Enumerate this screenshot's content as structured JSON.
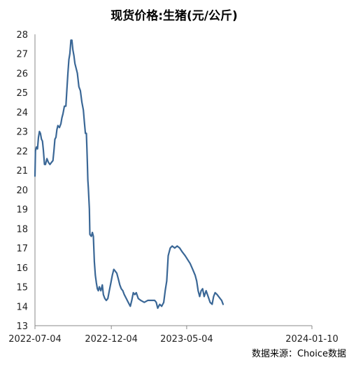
{
  "chart_data": {
    "type": "line",
    "title": "现货价格:生猪(元/公斤)",
    "xlabel": "",
    "ylabel": "",
    "ylim": [
      13,
      28
    ],
    "yticks": [
      13,
      14,
      15,
      16,
      17,
      18,
      19,
      20,
      21,
      22,
      23,
      24,
      25,
      26,
      27,
      28
    ],
    "xlim": [
      "2022-07-04",
      "2024-01-10"
    ],
    "xticks": [
      "2022-07-04",
      "2022-12-04",
      "2023-05-04",
      "2024-01-10"
    ],
    "grid": false,
    "line_color": "#3a6796",
    "series": [
      {
        "points": [
          [
            "2022-07-04",
            20.7
          ],
          [
            "2022-07-05",
            22.0
          ],
          [
            "2022-07-07",
            22.2
          ],
          [
            "2022-07-09",
            22.1
          ],
          [
            "2022-07-11",
            22.7
          ],
          [
            "2022-07-13",
            23.0
          ],
          [
            "2022-07-15",
            22.9
          ],
          [
            "2022-07-17",
            22.6
          ],
          [
            "2022-07-19",
            22.5
          ],
          [
            "2022-07-21",
            22.0
          ],
          [
            "2022-07-23",
            21.3
          ],
          [
            "2022-07-25",
            21.3
          ],
          [
            "2022-07-28",
            21.6
          ],
          [
            "2022-07-31",
            21.4
          ],
          [
            "2022-08-03",
            21.3
          ],
          [
            "2022-08-06",
            21.4
          ],
          [
            "2022-08-09",
            21.5
          ],
          [
            "2022-08-11",
            22.0
          ],
          [
            "2022-08-13",
            22.6
          ],
          [
            "2022-08-15",
            22.7
          ],
          [
            "2022-08-17",
            23.1
          ],
          [
            "2022-08-19",
            23.3
          ],
          [
            "2022-08-22",
            23.2
          ],
          [
            "2022-08-25",
            23.4
          ],
          [
            "2022-08-27",
            23.7
          ],
          [
            "2022-08-29",
            23.9
          ],
          [
            "2022-09-01",
            24.3
          ],
          [
            "2022-09-04",
            24.3
          ],
          [
            "2022-09-06",
            25.2
          ],
          [
            "2022-09-08",
            26.0
          ],
          [
            "2022-09-10",
            26.7
          ],
          [
            "2022-09-12",
            27.0
          ],
          [
            "2022-09-14",
            27.7
          ],
          [
            "2022-09-16",
            27.7
          ],
          [
            "2022-09-18",
            27.2
          ],
          [
            "2022-09-20",
            26.9
          ],
          [
            "2022-09-22",
            26.5
          ],
          [
            "2022-09-24",
            26.3
          ],
          [
            "2022-09-27",
            26.0
          ],
          [
            "2022-09-30",
            25.3
          ],
          [
            "2022-10-03",
            25.1
          ],
          [
            "2022-10-06",
            24.5
          ],
          [
            "2022-10-09",
            24.1
          ],
          [
            "2022-10-11",
            23.5
          ],
          [
            "2022-10-13",
            22.9
          ],
          [
            "2022-10-15",
            22.9
          ],
          [
            "2022-10-16",
            22.2
          ],
          [
            "2022-10-17",
            21.4
          ],
          [
            "2022-10-18",
            20.5
          ],
          [
            "2022-10-19",
            20.1
          ],
          [
            "2022-10-21",
            19.0
          ],
          [
            "2022-10-22",
            17.7
          ],
          [
            "2022-10-25",
            17.6
          ],
          [
            "2022-10-27",
            17.8
          ],
          [
            "2022-10-29",
            17.6
          ],
          [
            "2022-10-31",
            16.3
          ],
          [
            "2022-11-02",
            15.6
          ],
          [
            "2022-11-04",
            15.2
          ],
          [
            "2022-11-06",
            14.9
          ],
          [
            "2022-11-08",
            14.8
          ],
          [
            "2022-11-10",
            15.0
          ],
          [
            "2022-11-13",
            14.8
          ],
          [
            "2022-11-16",
            15.1
          ],
          [
            "2022-11-18",
            14.6
          ],
          [
            "2022-11-21",
            14.4
          ],
          [
            "2022-11-24",
            14.3
          ],
          [
            "2022-11-27",
            14.4
          ],
          [
            "2022-11-30",
            14.8
          ],
          [
            "2022-12-03",
            15.2
          ],
          [
            "2022-12-06",
            15.6
          ],
          [
            "2022-12-09",
            15.9
          ],
          [
            "2022-12-12",
            15.8
          ],
          [
            "2022-12-15",
            15.7
          ],
          [
            "2022-12-18",
            15.4
          ],
          [
            "2022-12-21",
            15.1
          ],
          [
            "2022-12-24",
            14.9
          ],
          [
            "2022-12-27",
            14.8
          ],
          [
            "2022-12-30",
            14.6
          ],
          [
            "2023-01-03",
            14.4
          ],
          [
            "2023-01-07",
            14.2
          ],
          [
            "2023-01-11",
            14.0
          ],
          [
            "2023-01-14",
            14.3
          ],
          [
            "2023-01-17",
            14.7
          ],
          [
            "2023-01-20",
            14.6
          ],
          [
            "2023-01-23",
            14.7
          ],
          [
            "2023-01-27",
            14.4
          ],
          [
            "2023-02-01",
            14.3
          ],
          [
            "2023-02-08",
            14.2
          ],
          [
            "2023-02-15",
            14.3
          ],
          [
            "2023-02-22",
            14.3
          ],
          [
            "2023-03-01",
            14.3
          ],
          [
            "2023-03-04",
            14.2
          ],
          [
            "2023-03-07",
            13.9
          ],
          [
            "2023-03-11",
            14.1
          ],
          [
            "2023-03-15",
            14.0
          ],
          [
            "2023-03-19",
            14.2
          ],
          [
            "2023-03-22",
            14.8
          ],
          [
            "2023-03-25",
            15.3
          ],
          [
            "2023-03-28",
            16.6
          ],
          [
            "2023-04-01",
            17.0
          ],
          [
            "2023-04-05",
            17.1
          ],
          [
            "2023-04-10",
            17.0
          ],
          [
            "2023-04-15",
            17.1
          ],
          [
            "2023-04-20",
            17.0
          ],
          [
            "2023-04-25",
            16.8
          ],
          [
            "2023-05-01",
            16.6
          ],
          [
            "2023-05-06",
            16.4
          ],
          [
            "2023-05-11",
            16.2
          ],
          [
            "2023-05-16",
            15.9
          ],
          [
            "2023-05-21",
            15.6
          ],
          [
            "2023-05-24",
            15.3
          ],
          [
            "2023-05-27",
            14.8
          ],
          [
            "2023-05-30",
            14.5
          ],
          [
            "2023-06-02",
            14.8
          ],
          [
            "2023-06-05",
            14.9
          ],
          [
            "2023-06-08",
            14.5
          ],
          [
            "2023-06-12",
            14.8
          ],
          [
            "2023-06-16",
            14.5
          ],
          [
            "2023-06-20",
            14.2
          ],
          [
            "2023-06-24",
            14.1
          ],
          [
            "2023-06-27",
            14.5
          ],
          [
            "2023-06-30",
            14.7
          ],
          [
            "2023-07-04",
            14.6
          ],
          [
            "2023-07-10",
            14.4
          ],
          [
            "2023-07-13",
            14.3
          ],
          [
            "2023-07-16",
            14.1
          ]
        ]
      }
    ]
  },
  "source_text": "数据来源：Choice数据"
}
